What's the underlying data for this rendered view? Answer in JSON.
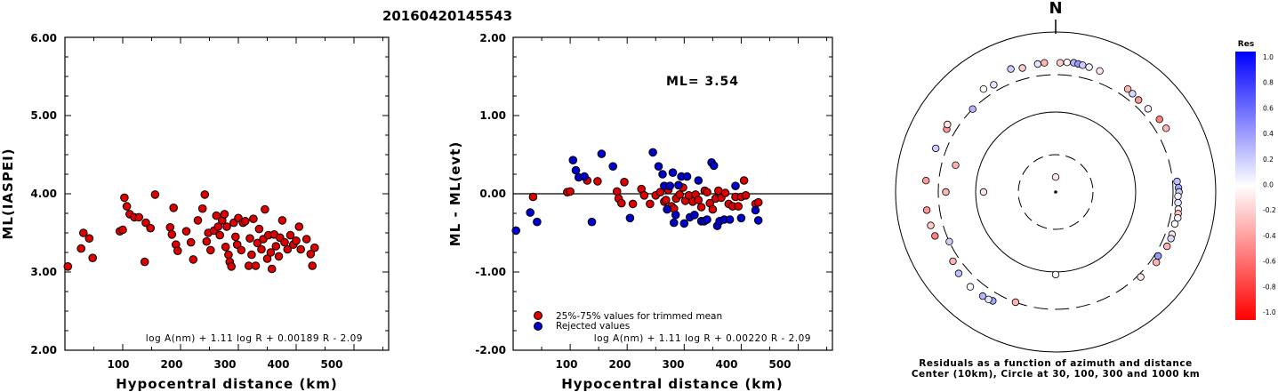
{
  "event_id": "20160420145543",
  "north_label": "N",
  "chart_data": [
    {
      "type": "scatter",
      "title": "",
      "xlabel": "Hypocentral distance (km)",
      "ylabel": "ML(IASPEI)",
      "xlim": [
        0,
        560
      ],
      "ylim": [
        2.0,
        6.0
      ],
      "x_ticks": [
        "100",
        "200",
        "300",
        "400",
        "500"
      ],
      "y_ticks": [
        "2.00",
        "3.00",
        "4.00",
        "5.00",
        "6.00"
      ],
      "formula": "log A(nm) + 1.11 log R + 0.00189 R - 2.09",
      "series": [
        {
          "color": "#dd0000",
          "points": [
            [
              5,
              3.07
            ],
            [
              28,
              3.3
            ],
            [
              32,
              3.5
            ],
            [
              42,
              3.43
            ],
            [
              48,
              3.18
            ],
            [
              95,
              3.52
            ],
            [
              100,
              3.54
            ],
            [
              103,
              3.95
            ],
            [
              107,
              3.84
            ],
            [
              112,
              3.74
            ],
            [
              120,
              3.7
            ],
            [
              128,
              3.7
            ],
            [
              138,
              3.13
            ],
            [
              140,
              3.63
            ],
            [
              148,
              3.56
            ],
            [
              156,
              3.99
            ],
            [
              182,
              3.57
            ],
            [
              185,
              3.48
            ],
            [
              188,
              3.82
            ],
            [
              192,
              3.35
            ],
            [
              195,
              3.27
            ],
            [
              210,
              3.52
            ],
            [
              218,
              3.38
            ],
            [
              222,
              3.16
            ],
            [
              230,
              3.66
            ],
            [
              238,
              3.81
            ],
            [
              242,
              3.99
            ],
            [
              245,
              3.39
            ],
            [
              248,
              3.5
            ],
            [
              252,
              3.28
            ],
            [
              258,
              3.53
            ],
            [
              262,
              3.72
            ],
            [
              265,
              3.58
            ],
            [
              268,
              3.47
            ],
            [
              272,
              3.66
            ],
            [
              276,
              3.74
            ],
            [
              278,
              3.32
            ],
            [
              280,
              3.58
            ],
            [
              283,
              3.22
            ],
            [
              285,
              3.13
            ],
            [
              288,
              3.07
            ],
            [
              292,
              3.63
            ],
            [
              295,
              3.45
            ],
            [
              298,
              3.35
            ],
            [
              300,
              3.69
            ],
            [
              305,
              3.28
            ],
            [
              308,
              3.63
            ],
            [
              312,
              3.65
            ],
            [
              318,
              3.08
            ],
            [
              320,
              3.43
            ],
            [
              323,
              3.22
            ],
            [
              326,
              3.68
            ],
            [
              330,
              3.08
            ],
            [
              333,
              3.37
            ],
            [
              336,
              3.55
            ],
            [
              340,
              3.29
            ],
            [
              343,
              3.42
            ],
            [
              346,
              3.8
            ],
            [
              350,
              3.17
            ],
            [
              352,
              3.47
            ],
            [
              356,
              3.25
            ],
            [
              358,
              3.04
            ],
            [
              362,
              3.48
            ],
            [
              365,
              3.33
            ],
            [
              370,
              3.2
            ],
            [
              372,
              3.44
            ],
            [
              376,
              3.66
            ],
            [
              380,
              3.38
            ],
            [
              385,
              3.29
            ],
            [
              390,
              3.47
            ],
            [
              395,
              3.35
            ],
            [
              400,
              3.4
            ],
            [
              405,
              3.58
            ],
            [
              408,
              3.29
            ],
            [
              418,
              3.42
            ],
            [
              425,
              3.23
            ],
            [
              428,
              3.08
            ],
            [
              432,
              3.31
            ]
          ]
        }
      ]
    },
    {
      "type": "scatter",
      "title": "",
      "xlabel": "Hypocentral distance (km)",
      "ylabel": "ML - ML(evt)",
      "xlim": [
        0,
        560
      ],
      "ylim": [
        -2.0,
        2.0
      ],
      "x_ticks": [
        "100",
        "200",
        "300",
        "400",
        "500"
      ],
      "y_ticks": [
        "-2.00",
        "-1.00",
        "0.00",
        "1.00",
        "2.00"
      ],
      "annotation": "ML= 3.54",
      "formula": "log A(nm) + 1.11 log R + 0.00220 R - 2.09",
      "legend_position": "bottom-left",
      "series": [
        {
          "name": "25%-75% values for trimmed mean",
          "color": "#dd0000",
          "points": [
            [
              35,
              -0.04
            ],
            [
              95,
              0.02
            ],
            [
              100,
              0.03
            ],
            [
              130,
              0.17
            ],
            [
              148,
              0.16
            ],
            [
              182,
              0.03
            ],
            [
              185,
              -0.06
            ],
            [
              190,
              -0.12
            ],
            [
              195,
              0.15
            ],
            [
              210,
              -0.13
            ],
            [
              225,
              0.06
            ],
            [
              230,
              -0.02
            ],
            [
              240,
              -0.13
            ],
            [
              250,
              -0.02
            ],
            [
              258,
              0.02
            ],
            [
              265,
              -0.1
            ],
            [
              268,
              -0.08
            ],
            [
              272,
              0.05
            ],
            [
              278,
              -0.16
            ],
            [
              282,
              -0.19
            ],
            [
              286,
              -0.06
            ],
            [
              292,
              -0.01
            ],
            [
              298,
              0.08
            ],
            [
              302,
              -0.09
            ],
            [
              308,
              -0.02
            ],
            [
              315,
              -0.1
            ],
            [
              320,
              -0.01
            ],
            [
              325,
              -0.08
            ],
            [
              330,
              -0.17
            ],
            [
              336,
              0.04
            ],
            [
              340,
              0.02
            ],
            [
              345,
              -0.12
            ],
            [
              350,
              -0.2
            ],
            [
              355,
              -0.06
            ],
            [
              360,
              0.04
            ],
            [
              365,
              -0.05
            ],
            [
              372,
              0.01
            ],
            [
              378,
              -0.13
            ],
            [
              385,
              -0.16
            ],
            [
              390,
              -0.04
            ],
            [
              395,
              -0.16
            ],
            [
              400,
              -0.04
            ],
            [
              405,
              0.17
            ],
            [
              408,
              -0.02
            ],
            [
              425,
              -0.13
            ],
            [
              430,
              -0.11
            ]
          ]
        },
        {
          "name": "Rejected values",
          "color": "#0000cc",
          "points": [
            [
              5,
              -0.47
            ],
            [
              30,
              -0.24
            ],
            [
              42,
              -0.36
            ],
            [
              105,
              0.43
            ],
            [
              110,
              0.3
            ],
            [
              115,
              0.21
            ],
            [
              125,
              0.22
            ],
            [
              138,
              -0.36
            ],
            [
              155,
              0.51
            ],
            [
              175,
              0.35
            ],
            [
              205,
              -0.31
            ],
            [
              245,
              0.53
            ],
            [
              255,
              0.35
            ],
            [
              262,
              0.25
            ],
            [
              265,
              0.1
            ],
            [
              270,
              -0.2
            ],
            [
              275,
              0.1
            ],
            [
              280,
              0.27
            ],
            [
              282,
              -0.37
            ],
            [
              285,
              -0.27
            ],
            [
              290,
              0.11
            ],
            [
              295,
              0.22
            ],
            [
              300,
              -0.38
            ],
            [
              305,
              0.22
            ],
            [
              310,
              -0.3
            ],
            [
              318,
              -0.27
            ],
            [
              325,
              0.17
            ],
            [
              330,
              -0.35
            ],
            [
              335,
              -0.35
            ],
            [
              340,
              -0.33
            ],
            [
              348,
              0.4
            ],
            [
              352,
              0.36
            ],
            [
              358,
              -0.41
            ],
            [
              362,
              -0.35
            ],
            [
              370,
              -0.33
            ],
            [
              380,
              -0.33
            ],
            [
              390,
              0.1
            ],
            [
              400,
              -0.31
            ],
            [
              425,
              -0.21
            ],
            [
              430,
              -0.34
            ]
          ]
        }
      ]
    },
    {
      "type": "scatter",
      "subtype": "polar-residuals",
      "caption_line1": "Residuals as a function of azimuth and distance",
      "caption_line2": "Center (10km), Circle at 30, 100, 300 and 1000 km",
      "colorbar_title": "Res",
      "colorbar_ticks": [
        "1.0",
        "0.8",
        "0.6",
        "0.4",
        "0.2",
        "0.0",
        "-0.2",
        "-0.4",
        "-0.6",
        "-0.8",
        "-1.0"
      ],
      "colorbar_range": [
        -1.0,
        1.0
      ],
      "ring_distances_km": [
        10,
        30,
        100,
        300,
        1000
      ],
      "points_az_dist_res": [
        [
          0,
          15,
          -0.1
        ],
        [
          2,
          420,
          -0.2
        ],
        [
          5,
          430,
          -0.05
        ],
        [
          8,
          435,
          0.3
        ],
        [
          10,
          430,
          0.4
        ],
        [
          12,
          425,
          0.2
        ],
        [
          15,
          420,
          0.05
        ],
        [
          20,
          415,
          -0.1
        ],
        [
          355,
          425,
          -0.3
        ],
        [
          352,
          420,
          0.1
        ],
        [
          345,
          410,
          -0.2
        ],
        [
          35,
          380,
          -0.3
        ],
        [
          38,
          370,
          0.15
        ],
        [
          42,
          360,
          -0.4
        ],
        [
          48,
          365,
          0.05
        ],
        [
          55,
          390,
          -0.5
        ],
        [
          60,
          400,
          -0.3
        ],
        [
          85,
          340,
          0.25
        ],
        [
          88,
          350,
          0.35
        ],
        [
          90,
          355,
          0.2
        ],
        [
          92,
          345,
          0.05
        ],
        [
          95,
          350,
          0.1
        ],
        [
          98,
          360,
          -0.05
        ],
        [
          100,
          365,
          -0.25
        ],
        [
          102,
          370,
          0.05
        ],
        [
          105,
          355,
          0.0
        ],
        [
          110,
          360,
          -0.1
        ],
        [
          112,
          365,
          0.15
        ],
        [
          116,
          360,
          -0.3
        ],
        [
          122,
          330,
          0.4
        ],
        [
          125,
          350,
          -0.3
        ],
        [
          135,
          325,
          -0.1
        ],
        [
          180,
          108,
          0.0
        ],
        [
          200,
          300,
          -0.3
        ],
        [
          210,
          380,
          0.35
        ],
        [
          212,
          390,
          0.1
        ],
        [
          215,
          395,
          0.3
        ],
        [
          222,
          400,
          0.0
        ],
        [
          230,
          390,
          0.25
        ],
        [
          236,
          360,
          -0.3
        ],
        [
          245,
          300,
          0.2
        ],
        [
          250,
          410,
          -0.5
        ],
        [
          255,
          420,
          -0.2
        ],
        [
          262,
          430,
          -0.4
        ],
        [
          270,
          240,
          -0.3
        ],
        [
          275,
          430,
          -0.4
        ],
        [
          285,
          200,
          -0.3
        ],
        [
          290,
          400,
          0.2
        ],
        [
          300,
          380,
          -0.4
        ],
        [
          302,
          400,
          -0.1
        ],
        [
          315,
          300,
          0.3
        ],
        [
          325,
          380,
          0.0
        ],
        [
          330,
          360,
          0.1
        ],
        [
          340,
          440,
          0.2
        ],
        [
          270,
          80,
          -0.1
        ]
      ]
    }
  ]
}
